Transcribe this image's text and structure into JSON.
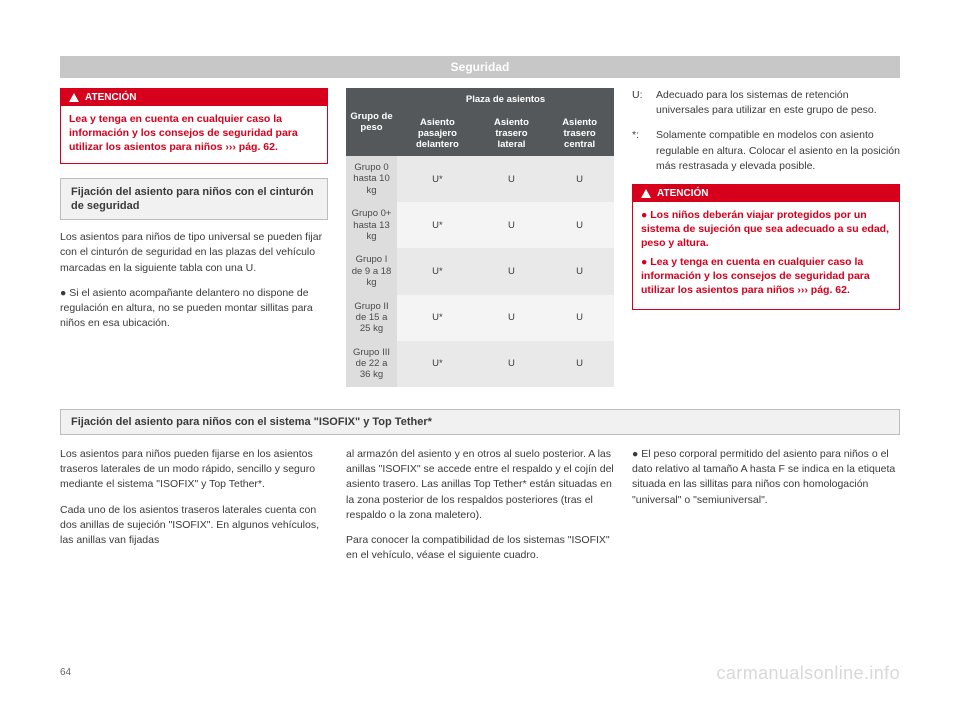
{
  "header": "Seguridad",
  "atencion1": {
    "label": "ATENCIÓN",
    "text": "Lea y tenga en cuenta en cualquier caso la información y los consejos de seguridad para utilizar los asientos para niños ››› pág. 62."
  },
  "sec1": {
    "title": "Fijación del asiento para niños con el cinturón de seguridad",
    "p1": "Los asientos para niños de tipo universal se pueden fijar con el cinturón de seguridad en las plazas del vehículo marcadas en la siguiente tabla con una U.",
    "b1": "Si el asiento acompañante delantero no dispone de regulación en altura, no se pueden montar sillitas para niños en esa ubicación."
  },
  "table": {
    "corner": "Grupo de peso",
    "spanhead": "Plaza de asientos",
    "cols": [
      "Asiento pasajero delantero",
      "Asiento trasero lateral",
      "Asiento trasero central"
    ],
    "rows": [
      {
        "label": "Grupo 0\nhasta 10 kg",
        "vals": [
          "U*",
          "U",
          "U"
        ]
      },
      {
        "label": "Grupo 0+\nhasta 13 kg",
        "vals": [
          "U*",
          "U",
          "U"
        ]
      },
      {
        "label": "Grupo I\nde 9 a 18 kg",
        "vals": [
          "U*",
          "U",
          "U"
        ]
      },
      {
        "label": "Grupo II\nde 15 a 25 kg",
        "vals": [
          "U*",
          "U",
          "U"
        ]
      },
      {
        "label": "Grupo III\nde 22 a 36 kg",
        "vals": [
          "U*",
          "U",
          "U"
        ]
      }
    ]
  },
  "defs": {
    "U": "Adecuado para los sistemas de retención universales para utilizar en este grupo de peso.",
    "star": "Solamente compatible en modelos con asiento regulable en altura. Colocar el asiento en la posición más restrasada y elevada posible."
  },
  "atencion2": {
    "label": "ATENCIÓN",
    "items": [
      "Los niños deberán viajar protegidos por un sistema de sujeción que sea adecuado a su edad, peso y altura.",
      "Lea y tenga en cuenta en cualquier caso la información y los consejos de seguridad para utilizar los asientos para niños ››› pág. 62."
    ]
  },
  "sec2": {
    "title": "Fijación del asiento para niños con el sistema \"ISOFIX\" y Top Tether*",
    "colA_p1": "Los asientos para niños pueden fijarse en los asientos traseros laterales de un modo rápido, sencillo y seguro mediante el sistema \"ISOFIX\" y Top Tether*.",
    "colA_p2": "Cada uno de los asientos traseros laterales cuenta con dos anillas de sujeción \"ISOFIX\". En algunos vehículos, las anillas van fijadas",
    "colB_p1": "al armazón del asiento y en otros al suelo posterior. A las anillas \"ISOFIX\" se accede entre el respaldo y el cojín del asiento trasero. Las anillas Top Tether* están situadas en la zona posterior de los respaldos posteriores (tras el respaldo o la zona maletero).",
    "colB_p2": "Para conocer la compatibilidad de los sistemas \"ISOFIX\" en el vehículo, véase el siguiente cuadro.",
    "colC_b1": "El peso corporal permitido del asiento para niños o el dato relativo al tamaño A hasta F se indica en la etiqueta situada en las sillitas para niños con homologación \"universal\" o \"semiuniversal\"."
  },
  "pagenum": "64",
  "watermark": "carmanualsonline.info"
}
